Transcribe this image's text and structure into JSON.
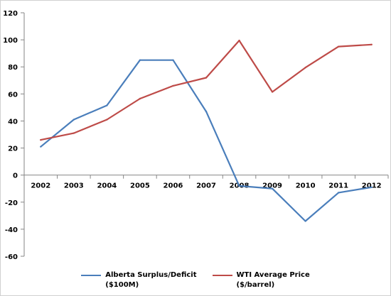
{
  "chart_data": {
    "type": "line",
    "title": "",
    "xlabel": "",
    "ylabel": "",
    "categories": [
      "2002",
      "2003",
      "2004",
      "2005",
      "2006",
      "2007",
      "2008",
      "2009",
      "2010",
      "2011",
      "2012"
    ],
    "ylim": [
      -60,
      120
    ],
    "yticks": [
      -60,
      -40,
      -20,
      0,
      20,
      40,
      60,
      80,
      100,
      120
    ],
    "grid": false,
    "legend_position": "bottom",
    "series": [
      {
        "name": "Alberta Surplus/Deficit\n($100M)",
        "color": "#4a7ebb",
        "values": [
          21,
          41,
          51.5,
          85,
          85,
          47,
          -8,
          -10,
          -34,
          -13,
          -9
        ]
      },
      {
        "name": "WTI Average Price\n($/barrel)",
        "color": "#be4b48",
        "values": [
          26,
          31,
          41,
          56.5,
          66,
          72,
          99.5,
          61.5,
          79.5,
          95,
          96.5
        ]
      }
    ]
  }
}
